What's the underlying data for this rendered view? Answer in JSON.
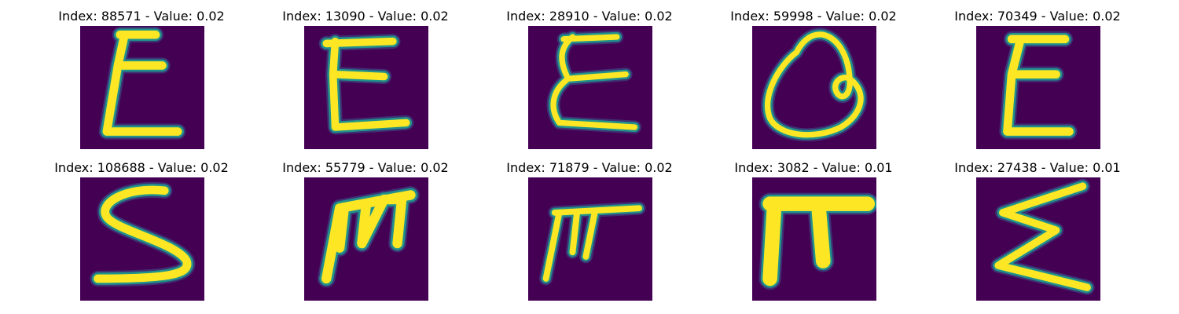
{
  "figure": {
    "panels": [
      {
        "index": "88571",
        "value": "0.02",
        "title": "Index: 88571 - Value: 0.02",
        "glyph": "sigma-e"
      },
      {
        "index": "13090",
        "value": "0.02",
        "title": "Index: 13090 - Value: 0.02",
        "glyph": "e-shape"
      },
      {
        "index": "28910",
        "value": "0.02",
        "title": "Index: 28910 - Value: 0.02",
        "glyph": "e-shape"
      },
      {
        "index": "59998",
        "value": "0.02",
        "title": "Index: 59998 - Value: 0.02",
        "glyph": "loop-shape"
      },
      {
        "index": "70349",
        "value": "0.02",
        "title": "Index: 70349 - Value: 0.02",
        "glyph": "e-shape"
      },
      {
        "index": "108688",
        "value": "0.02",
        "title": "Index: 108688 - Value: 0.02",
        "glyph": "s-shape"
      },
      {
        "index": "55779",
        "value": "0.02",
        "title": "Index: 55779 - Value: 0.02",
        "glyph": "m-shape"
      },
      {
        "index": "71879",
        "value": "0.02",
        "title": "Index: 71879 - Value: 0.02",
        "glyph": "pi-shape"
      },
      {
        "index": "3082",
        "value": "0.01",
        "title": "Index: 3082 - Value: 0.01",
        "glyph": "pi-shape"
      },
      {
        "index": "27438",
        "value": "0.01",
        "title": "Index: 27438 - Value: 0.01",
        "glyph": "sigma-shape"
      }
    ],
    "colors": {
      "image_background": "#440154",
      "stroke_core": "#fde725",
      "stroke_edge": "#21918c",
      "stroke_outer": "#3b528b"
    }
  }
}
